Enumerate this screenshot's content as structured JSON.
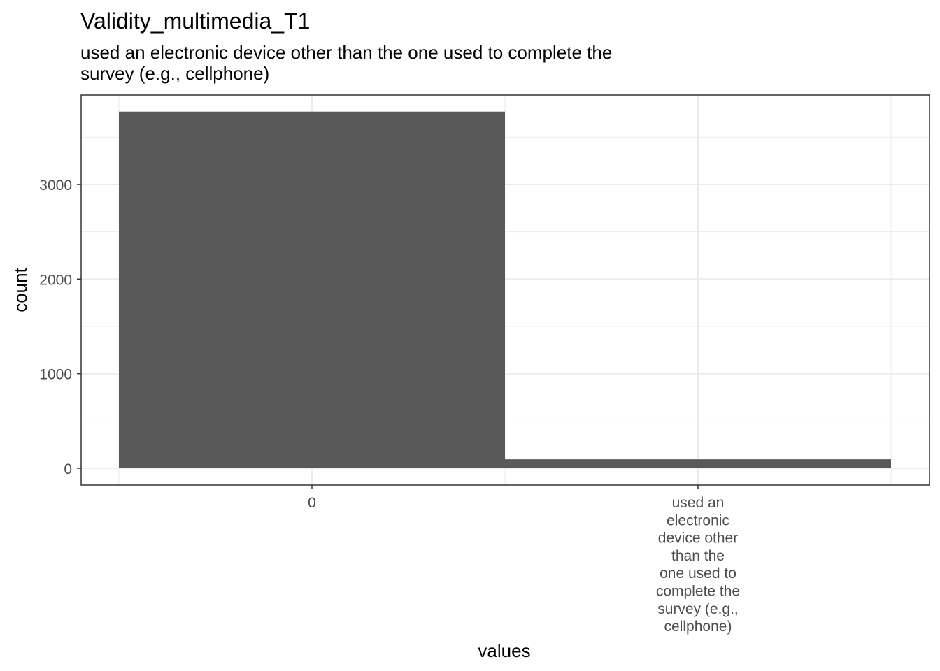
{
  "chart_data": {
    "type": "bar",
    "title": "Validity_multimedia_T1",
    "subtitle_lines": [
      "used an electronic device other than the one used to complete the",
      "survey (e.g., cellphone)"
    ],
    "xlabel": "values",
    "ylabel": "count",
    "categories": [
      "0",
      "used an electronic device other than the one used to complete the survey (e.g., cellphone)"
    ],
    "category_label_lines": [
      [
        "0"
      ],
      [
        "used an",
        "electronic",
        "device other",
        "than the",
        "one used to",
        "complete the",
        "survey (e.g.,",
        "cellphone)"
      ]
    ],
    "values": [
      3770,
      95
    ],
    "ylim": [
      0,
      3950
    ],
    "yticks": [
      0,
      1000,
      2000,
      3000
    ],
    "ytick_labels": [
      "0",
      "1000",
      "2000",
      "3000"
    ],
    "grid": true,
    "bar_color": "#595959",
    "panel_border_color": "#333333",
    "grid_color": "#ebebeb"
  }
}
